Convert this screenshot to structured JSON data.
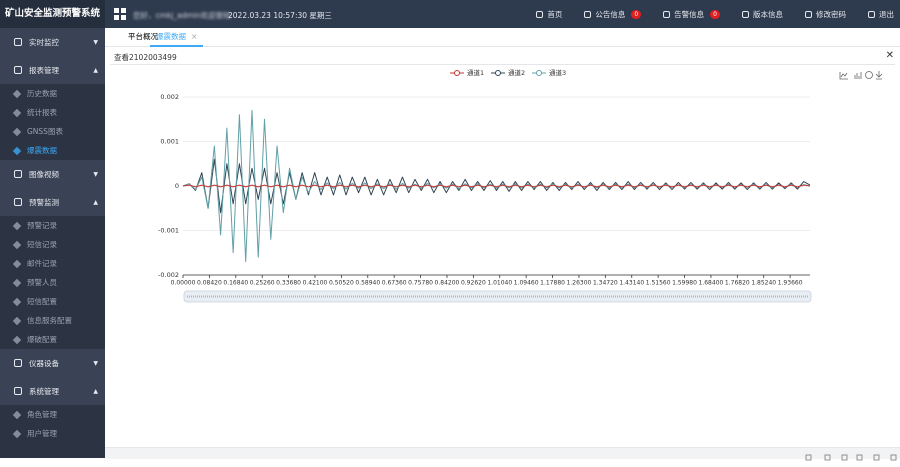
{
  "header": {
    "title": "矿山安全监测预警系统",
    "greeting": "您好，cmkj_admin欢迎登陆",
    "datetime": "2022.03.23 10:57:30 星期三",
    "menu": [
      {
        "label": "首页"
      },
      {
        "label": "公告信息",
        "badge": 0
      },
      {
        "label": "告警信息",
        "badge": 0
      },
      {
        "label": "版本信息"
      },
      {
        "label": "修改密码"
      },
      {
        "label": "退出"
      }
    ]
  },
  "sidebar": [
    {
      "label": "实时监控",
      "open": false,
      "items": []
    },
    {
      "label": "报表管理",
      "open": true,
      "items": [
        "历史数据",
        "统计报表",
        "GNSS图表",
        "爆震数据"
      ]
    },
    {
      "label": "图像视频",
      "open": false,
      "items": []
    },
    {
      "label": "预警监测",
      "open": true,
      "items": [
        "预警记录",
        "短信记录",
        "邮件记录",
        "预警人员",
        "短信配置",
        "信息服务配置",
        "爆破配置"
      ]
    },
    {
      "label": "仪器设备",
      "open": false,
      "items": []
    },
    {
      "label": "系统管理",
      "open": true,
      "items": [
        "角色管理",
        "用户管理"
      ]
    }
  ],
  "active_item": "爆震数据",
  "tabs": [
    "平台概况",
    "爆震数据"
  ],
  "panel_title": "查看2102003499",
  "chart_data": {
    "type": "line",
    "xlim": [
      0,
      2
    ],
    "ylim": [
      -0.002,
      0.002
    ],
    "yticks": [
      0.002,
      0.001,
      0,
      -0.001,
      -0.002
    ],
    "grid": true,
    "xticks": [
      {
        "value": 0,
        "label": "0.00000"
      },
      {
        "value": 0.0842,
        "label": "0.08420"
      },
      {
        "value": 0.1684,
        "label": "0.16840"
      },
      {
        "value": 0.2526,
        "label": "0.25260"
      },
      {
        "value": 0.3368,
        "label": "0.33680"
      },
      {
        "value": 0.421,
        "label": "0.42100"
      },
      {
        "value": 0.5052,
        "label": "0.50520"
      },
      {
        "value": 0.5894,
        "label": "0.58940"
      },
      {
        "value": 0.6736,
        "label": "0.67360"
      },
      {
        "value": 0.7578,
        "label": "0.75780"
      },
      {
        "value": 0.842,
        "label": "0.84200"
      },
      {
        "value": 0.9262,
        "label": "0.92620"
      },
      {
        "value": 1.0104,
        "label": "1.01040"
      },
      {
        "value": 1.0946,
        "label": "1.09460"
      },
      {
        "value": 1.1788,
        "label": "1.17880"
      },
      {
        "value": 1.263,
        "label": "1.26300"
      },
      {
        "value": 1.3472,
        "label": "1.34720"
      },
      {
        "value": 1.4314,
        "label": "1.43140"
      },
      {
        "value": 1.5156,
        "label": "1.51560"
      },
      {
        "value": 1.5998,
        "label": "1.59980"
      },
      {
        "value": 1.684,
        "label": "1.68400"
      },
      {
        "value": 1.7682,
        "label": "1.76820"
      },
      {
        "value": 1.8524,
        "label": "1.85240"
      },
      {
        "value": 1.9366,
        "label": "1.93660"
      }
    ],
    "x": [
      0,
      0.02,
      0.04,
      0.06,
      0.08,
      0.1,
      0.12,
      0.14,
      0.16,
      0.18,
      0.2,
      0.22,
      0.24,
      0.26,
      0.28,
      0.3,
      0.32,
      0.34,
      0.36,
      0.38,
      0.4,
      0.42,
      0.44,
      0.46,
      0.48,
      0.5,
      0.52,
      0.54,
      0.56,
      0.58,
      0.6,
      0.62,
      0.64,
      0.66,
      0.68,
      0.7,
      0.72,
      0.74,
      0.76,
      0.78,
      0.8,
      0.82,
      0.84,
      0.86,
      0.88,
      0.9,
      0.92,
      0.94,
      0.96,
      0.98,
      1,
      1.02,
      1.04,
      1.06,
      1.08,
      1.1,
      1.12,
      1.14,
      1.16,
      1.18,
      1.2,
      1.22,
      1.24,
      1.26,
      1.28,
      1.3,
      1.32,
      1.34,
      1.36,
      1.38,
      1.4,
      1.42,
      1.44,
      1.46,
      1.48,
      1.5,
      1.52,
      1.54,
      1.56,
      1.58,
      1.6,
      1.62,
      1.64,
      1.66,
      1.68,
      1.7,
      1.72,
      1.74,
      1.76,
      1.78,
      1.8,
      1.82,
      1.84,
      1.86,
      1.88,
      1.9,
      1.92,
      1.94,
      1.96,
      1.98,
      2
    ],
    "series": [
      {
        "name": "通道1",
        "color": "#c23531",
        "values": [
          0,
          2e-05,
          -2e-05,
          2e-05,
          -2e-05,
          2e-05,
          -2e-05,
          2e-05,
          -2e-05,
          2e-05,
          -2e-05,
          2e-05,
          -2e-05,
          2e-05,
          -2e-05,
          2e-05,
          -2e-05,
          2e-05,
          -2e-05,
          2e-05,
          -2e-05,
          2e-05,
          -2e-05,
          2e-05,
          -2e-05,
          2e-05,
          -2e-05,
          2e-05,
          -2e-05,
          2e-05,
          -2e-05,
          2e-05,
          -2e-05,
          2e-05,
          -2e-05,
          2e-05,
          -2e-05,
          2e-05,
          -2e-05,
          2e-05,
          -2e-05,
          2e-05,
          -2e-05,
          2e-05,
          -2e-05,
          2e-05,
          -2e-05,
          2e-05,
          -2e-05,
          2e-05,
          -2e-05,
          2e-05,
          -2e-05,
          2e-05,
          -2e-05,
          2e-05,
          -2e-05,
          2e-05,
          -2e-05,
          2e-05,
          -2e-05,
          2e-05,
          -2e-05,
          2e-05,
          -2e-05,
          2e-05,
          -2e-05,
          2e-05,
          -2e-05,
          2e-05,
          -2e-05,
          2e-05,
          -2e-05,
          2e-05,
          -2e-05,
          2e-05,
          -2e-05,
          2e-05,
          -2e-05,
          2e-05,
          -2e-05,
          2e-05,
          -2e-05,
          2e-05,
          -2e-05,
          2e-05,
          -2e-05,
          2e-05,
          -2e-05,
          2e-05,
          -2e-05,
          2e-05,
          -2e-05,
          2e-05,
          -2e-05,
          2e-05,
          -2e-05,
          2e-05,
          -2e-05,
          2e-05,
          0
        ]
      },
      {
        "name": "通道2",
        "color": "#2f4554",
        "values": [
          0,
          5e-05,
          -0.0001,
          0.0003,
          -0.0005,
          0.0006,
          -0.0006,
          0.0005,
          -0.0004,
          0.0005,
          -0.0004,
          0.0004,
          -0.0003,
          0.0004,
          -0.0004,
          0.0003,
          -0.0004,
          0.0003,
          -0.0003,
          0.0003,
          -0.0002,
          0.0003,
          -0.0002,
          0.0002,
          -0.0002,
          0.00025,
          -0.0002,
          0.0002,
          -0.00015,
          0.0002,
          -0.0002,
          0.00015,
          -0.0002,
          0.00015,
          -0.00015,
          0.0002,
          -0.00015,
          0.00015,
          -0.0001,
          0.00015,
          -0.00015,
          0.0001,
          -0.00015,
          0.0001,
          -0.0001,
          0.00015,
          -0.0001,
          0.0001,
          -0.0001,
          0.00012,
          -0.0001,
          0.0001,
          -0.00012,
          0.0001,
          -0.0001,
          0.0001,
          -8e-05,
          0.0001,
          -0.0001,
          8e-05,
          -0.0001,
          8e-05,
          -8e-05,
          0.0001,
          -8e-05,
          8e-05,
          -0.0001,
          8e-05,
          -8e-05,
          8e-05,
          -8e-05,
          0.0001,
          -8e-05,
          8e-05,
          -7e-05,
          8e-05,
          -8e-05,
          7e-05,
          -8e-05,
          8e-05,
          -7e-05,
          8e-05,
          -7e-05,
          7e-05,
          -8e-05,
          7e-05,
          -7e-05,
          8e-05,
          -7e-05,
          7e-05,
          -8e-05,
          7e-05,
          -7e-05,
          8e-05,
          -7e-05,
          7e-05,
          -6e-05,
          7e-05,
          -7e-05,
          0.0001,
          2e-05
        ]
      },
      {
        "name": "通道3",
        "color": "#61a0a8",
        "values": [
          0,
          5e-05,
          -8e-05,
          0.0002,
          -0.0005,
          0.0009,
          -0.0011,
          0.0013,
          -0.0015,
          0.0016,
          -0.0017,
          0.0017,
          -0.0016,
          0.0015,
          -0.0012,
          0.0009,
          -0.0006,
          0.0004,
          -0.0003,
          0.0002,
          -0.00015,
          0.0001,
          -8e-05,
          7e-05,
          -6e-05,
          8e-05,
          -7e-05,
          6e-05,
          -5e-05,
          7e-05,
          -6e-05,
          5e-05,
          -6e-05,
          5e-05,
          -7e-05,
          6e-05,
          -5e-05,
          4e-05,
          -5e-05,
          6e-05,
          -4e-05,
          5e-05,
          -5e-05,
          4e-05,
          -6e-05,
          5e-05,
          -4e-05,
          5e-05,
          -4e-05,
          4e-05,
          -5e-05,
          4e-05,
          -4e-05,
          5e-05,
          -4e-05,
          4e-05,
          -5e-05,
          4e-05,
          -4e-05,
          5e-05,
          -4e-05,
          4e-05,
          -5e-05,
          4e-05,
          -3e-05,
          4e-05,
          -4e-05,
          3e-05,
          -4e-05,
          4e-05,
          -3e-05,
          4e-05,
          -4e-05,
          3e-05,
          -4e-05,
          3e-05,
          -3e-05,
          4e-05,
          -3e-05,
          3e-05,
          -4e-05,
          3e-05,
          -3e-05,
          4e-05,
          -3e-05,
          3e-05,
          -3e-05,
          4e-05,
          -3e-05,
          3e-05,
          -3e-05,
          4e-05,
          -3e-05,
          3e-05,
          -4e-05,
          3e-05,
          -3e-05,
          4e-05,
          -3e-05,
          3e-05,
          0
        ]
      }
    ]
  }
}
